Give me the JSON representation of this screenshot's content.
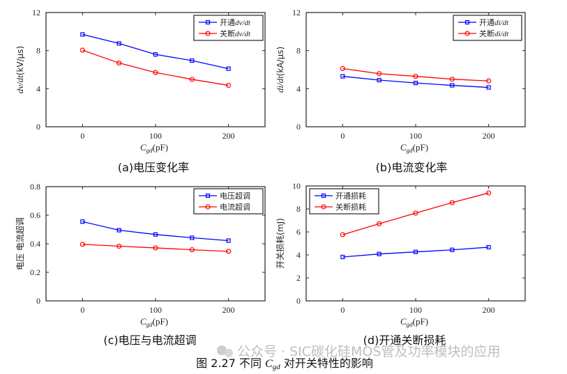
{
  "figure_caption": {
    "prefix": "图 2.27  不同 ",
    "var": "C",
    "sub": "gd",
    "suffix": " 对开关特性的影响"
  },
  "watermark": "公众号 · SIC碳化硅MOS管及功率模块的应用",
  "chart_data": [
    {
      "type": "line",
      "caption": "(a)电压变化率",
      "x": [
        0,
        50,
        100,
        150,
        200
      ],
      "xlim": [
        -50,
        250
      ],
      "xticks": [
        "0",
        "100",
        "200"
      ],
      "xlabel": {
        "var": "C",
        "sub": "gd",
        "unit": "(pF)"
      },
      "ylim": [
        0,
        12
      ],
      "yticks": [
        "0",
        "4",
        "8",
        "12"
      ],
      "ylabel": {
        "var": "dv/dt",
        "unit": "(kV/μs)"
      },
      "legend_position": "top-right",
      "series": [
        {
          "name": "开通dv/dt",
          "name_cn": "开通",
          "name_var": "dv/dt",
          "color": "#0000ff",
          "marker": "square",
          "values": [
            9.7,
            8.75,
            7.6,
            6.95,
            6.1
          ]
        },
        {
          "name": "关断dv/dt",
          "name_cn": "关断",
          "name_var": "dv/dt",
          "color": "#ff0000",
          "marker": "circle",
          "values": [
            8.05,
            6.7,
            5.7,
            4.98,
            4.35
          ]
        }
      ]
    },
    {
      "type": "line",
      "caption": "(b)电流变化率",
      "x": [
        0,
        50,
        100,
        150,
        200
      ],
      "xlim": [
        -50,
        250
      ],
      "xticks": [
        "0",
        "100",
        "200"
      ],
      "xlabel": {
        "var": "C",
        "sub": "gd",
        "unit": "(pF)"
      },
      "ylim": [
        0,
        12
      ],
      "yticks": [
        "0",
        "4",
        "8",
        "12"
      ],
      "ylabel": {
        "var": "di/dt",
        "unit": "(kA/μs)"
      },
      "legend_position": "top-right",
      "series": [
        {
          "name": "开通di/dt",
          "name_cn": "开通",
          "name_var": "di/dt",
          "color": "#0000ff",
          "marker": "square",
          "values": [
            5.3,
            4.9,
            4.6,
            4.35,
            4.13
          ]
        },
        {
          "name": "关断di/dt",
          "name_cn": "关断",
          "name_var": "di/dt",
          "color": "#ff0000",
          "marker": "circle",
          "values": [
            6.12,
            5.58,
            5.3,
            5.0,
            4.81
          ]
        }
      ]
    },
    {
      "type": "line",
      "caption": "(c)电压与电流超调",
      "x": [
        0,
        50,
        100,
        150,
        200
      ],
      "xlim": [
        -50,
        250
      ],
      "xticks": [
        "0",
        "100",
        "200"
      ],
      "xlabel": {
        "var": "C",
        "sub": "gd",
        "unit": "(pF)"
      },
      "ylim": [
        0,
        0.8
      ],
      "yticks": [
        "0",
        "0.2",
        "0.4",
        "0.6",
        "0.8"
      ],
      "ylabel": {
        "var": "",
        "unit": "电压 电流超调"
      },
      "legend_position": "top-right",
      "series": [
        {
          "name": "电压超调",
          "name_cn": "电压超调",
          "name_var": "",
          "color": "#0000ff",
          "marker": "square",
          "values": [
            0.555,
            0.495,
            0.465,
            0.442,
            0.422
          ]
        },
        {
          "name": "电流超调",
          "name_cn": "电流超调",
          "name_var": "",
          "color": "#ff0000",
          "marker": "circle",
          "values": [
            0.396,
            0.383,
            0.371,
            0.358,
            0.347
          ]
        }
      ]
    },
    {
      "type": "line",
      "caption": "(d)开通关断损耗",
      "x": [
        0,
        50,
        100,
        150,
        200
      ],
      "xlim": [
        -50,
        250
      ],
      "xticks": [
        "0",
        "100",
        "200"
      ],
      "xlabel": {
        "var": "C",
        "sub": "gd",
        "unit": "(pF)"
      },
      "ylim": [
        0,
        10
      ],
      "yticks": [
        "0",
        "2",
        "4",
        "6",
        "8",
        "10"
      ],
      "ylabel": {
        "var": "",
        "unit": "开关损耗(mJ)"
      },
      "legend_position": "top-left",
      "series": [
        {
          "name": "开通损耗",
          "name_cn": "开通损耗",
          "name_var": "",
          "color": "#0000ff",
          "marker": "square",
          "values": [
            3.82,
            4.08,
            4.26,
            4.44,
            4.67
          ]
        },
        {
          "name": "关断损耗",
          "name_cn": "关断损耗",
          "name_var": "",
          "color": "#ff0000",
          "marker": "circle",
          "values": [
            5.76,
            6.71,
            7.64,
            8.55,
            9.39
          ]
        }
      ]
    }
  ]
}
